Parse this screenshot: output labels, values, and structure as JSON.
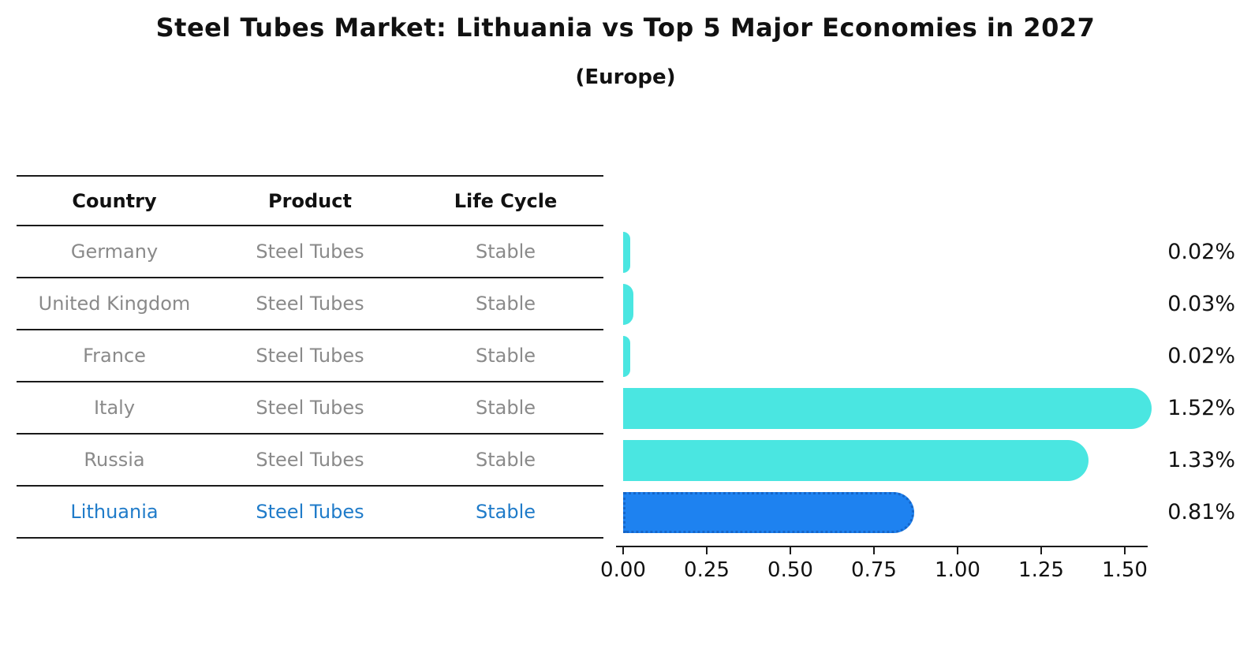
{
  "title": "Steel Tubes Market: Lithuania vs Top 5 Major Economies in 2027",
  "subtitle": "(Europe)",
  "table": {
    "headers": [
      "Country",
      "Product",
      "Life Cycle"
    ]
  },
  "chart_data": {
    "type": "bar",
    "orientation": "horizontal",
    "title": "Steel Tubes Market: Lithuania vs Top 5 Major Economies in 2027",
    "subtitle": "(Europe)",
    "unit": "%",
    "rows": [
      {
        "country": "Germany",
        "product": "Steel Tubes",
        "life_cycle": "Stable",
        "value": 0.02,
        "value_label": "0.02%",
        "highlight": false
      },
      {
        "country": "United Kingdom",
        "product": "Steel Tubes",
        "life_cycle": "Stable",
        "value": 0.03,
        "value_label": "0.03%",
        "highlight": false
      },
      {
        "country": "France",
        "product": "Steel Tubes",
        "life_cycle": "Stable",
        "value": 0.02,
        "value_label": "0.02%",
        "highlight": false
      },
      {
        "country": "Italy",
        "product": "Steel Tubes",
        "life_cycle": "Stable",
        "value": 1.52,
        "value_label": "1.52%",
        "highlight": false
      },
      {
        "country": "Russia",
        "product": "Steel Tubes",
        "life_cycle": "Stable",
        "value": 1.33,
        "value_label": "1.33%",
        "highlight": false
      },
      {
        "country": "Lithuania",
        "product": "Steel Tubes",
        "life_cycle": "Stable",
        "value": 0.81,
        "value_label": "0.81%",
        "highlight": true
      }
    ],
    "x_ticks": [
      "0.00",
      "0.25",
      "0.50",
      "0.75",
      "1.00",
      "1.25",
      "1.50"
    ],
    "xlim": [
      0,
      1.57
    ],
    "grid": false,
    "legend": "none",
    "colors": {
      "bar_default": "#4ae6e1",
      "bar_highlight": "#1e82f0",
      "bar_highlight_border": "#1565c8",
      "highlight_text": "#1f7bc9",
      "row_text": "#8a8a8a",
      "axis": "#1a1a1a",
      "label_text": "#111111"
    }
  }
}
